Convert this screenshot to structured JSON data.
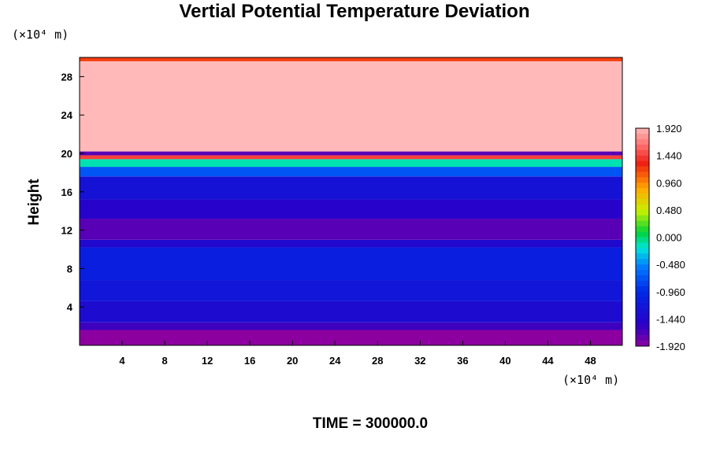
{
  "chart_data": {
    "type": "heatmap",
    "title": "Vertial Potential Temperature Deviation",
    "ylabel": "Height",
    "x_unit": "(×10⁴ m)",
    "y_unit": "(×10⁴ m)",
    "xlim": [
      0,
      51
    ],
    "ylim": [
      0,
      30
    ],
    "x_ticks": [
      4,
      8,
      12,
      16,
      20,
      24,
      28,
      32,
      36,
      40,
      44,
      48
    ],
    "y_ticks": [
      4,
      8,
      12,
      16,
      20,
      24,
      28
    ],
    "colorbar": {
      "min": -1.92,
      "max": 1.92,
      "tick_values": [
        1.92,
        1.44,
        0.96,
        0.48,
        0.0,
        -0.48,
        -0.96,
        -1.44,
        -1.92
      ],
      "tick_labels": [
        "1.920",
        "1.440",
        "0.960",
        "0.480",
        "0.000",
        "-0.480",
        "-0.960",
        "-1.440",
        "-1.920"
      ]
    },
    "layers": [
      {
        "y_bottom": 0.0,
        "y_top": 1.6,
        "value": -1.92
      },
      {
        "y_bottom": 1.6,
        "y_top": 2.4,
        "value": -1.62
      },
      {
        "y_bottom": 2.4,
        "y_top": 4.6,
        "value": -1.38
      },
      {
        "y_bottom": 4.6,
        "y_top": 6.8,
        "value": -1.22
      },
      {
        "y_bottom": 6.8,
        "y_top": 10.2,
        "value": -1.1
      },
      {
        "y_bottom": 10.2,
        "y_top": 11.0,
        "value": -1.42
      },
      {
        "y_bottom": 11.0,
        "y_top": 13.2,
        "value": -1.72
      },
      {
        "y_bottom": 13.2,
        "y_top": 15.2,
        "value": -1.5
      },
      {
        "y_bottom": 15.2,
        "y_top": 17.6,
        "value": -1.28
      },
      {
        "y_bottom": 17.6,
        "y_top": 18.6,
        "value": -0.72
      },
      {
        "y_bottom": 18.6,
        "y_top": 19.4,
        "value": -0.12
      },
      {
        "y_bottom": 19.4,
        "y_top": 19.8,
        "value": 1.44
      },
      {
        "y_bottom": 19.8,
        "y_top": 20.2,
        "value": -1.72
      },
      {
        "y_bottom": 20.2,
        "y_top": 29.6,
        "value": 1.92
      },
      {
        "y_bottom": 29.6,
        "y_top": 30.0,
        "value": 1.2
      }
    ],
    "time_label": "TIME = 300000.0"
  }
}
